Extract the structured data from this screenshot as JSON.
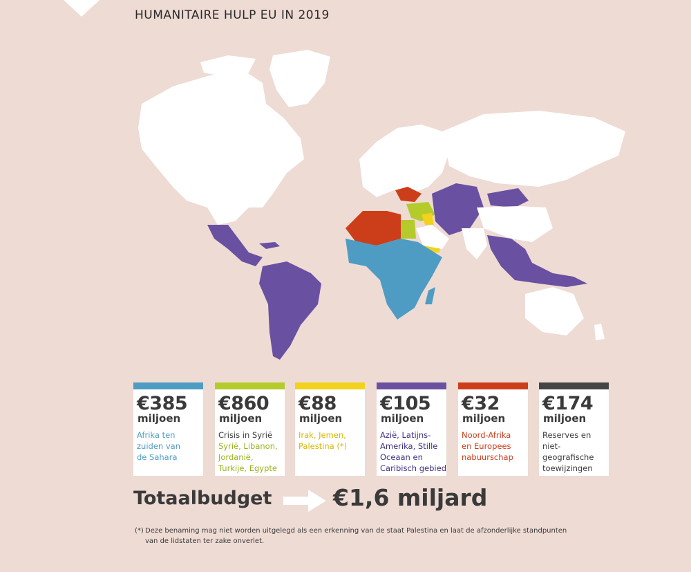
{
  "title": "HUMANITAIRE HULP EU IN 2019",
  "colors": {
    "background": "#eedbd4",
    "land": "#ffffff",
    "sahara_africa": "#4e9cc4",
    "syria_crisis": "#b5cb2c",
    "iraq_yemen_palestine": "#f2d21c",
    "asia_latam": "#6a50a1",
    "north_africa_neighbourhood": "#cc3e1a",
    "reserves": "#444444"
  },
  "map_legend_note": "Regions coloured by funding category",
  "cards": [
    {
      "color": "#4e9cc4",
      "amount": "€385",
      "unit": "miljoen",
      "lines": [
        "Afrika ten",
        "zuiden van",
        "de Sahara"
      ],
      "line_colors": [
        "#4e9cc4",
        "#4e9cc4",
        "#4e9cc4"
      ]
    },
    {
      "color": "#b5cb2c",
      "amount": "€860",
      "unit": "miljoen",
      "lines": [
        "Crisis in Syrië",
        "Syrië, Libanon,",
        "Jordanië,",
        "Turkije, Egypte"
      ],
      "line_colors": [
        "#3a3a3a",
        "#9ab31a",
        "#9ab31a",
        "#9ab31a"
      ]
    },
    {
      "color": "#f2d21c",
      "amount": "€88",
      "unit": "miljoen",
      "lines": [
        "Irak, Jemen,",
        "Palestina (*)"
      ],
      "line_colors": [
        "#d9b800",
        "#d9b800"
      ]
    },
    {
      "color": "#6a50a1",
      "amount": "€105",
      "unit": "miljoen",
      "lines": [
        "Azië, Latijns-",
        "Amerika, Stille",
        "Oceaan en",
        "Caribisch gebied"
      ],
      "line_colors": [
        "#3f2f86",
        "#3f2f86",
        "#3f2f86",
        "#3f2f86"
      ]
    },
    {
      "color": "#cc3e1a",
      "amount": "€32",
      "unit": "miljoen",
      "lines": [
        "Noord-Afrika",
        "en Europees",
        "nabuurschap"
      ],
      "line_colors": [
        "#cc3e1a",
        "#cc3e1a",
        "#cc3e1a"
      ]
    },
    {
      "color": "#444444",
      "amount": "€174",
      "unit": "miljoen",
      "lines": [
        "Reserves en",
        "niet-geografische",
        "toewijzingen"
      ],
      "line_colors": [
        "#3a3a3a",
        "#3a3a3a",
        "#3a3a3a"
      ]
    }
  ],
  "total": {
    "label": "Totaalbudget",
    "value": "€1,6 miljard"
  },
  "footnote": {
    "mark": "(*)",
    "text": "Deze benaming mag niet worden uitgelegd als een erkenning van de staat Palestina en laat de afzonderlijke standpunten van de lidstaten ter zake onverlet."
  }
}
